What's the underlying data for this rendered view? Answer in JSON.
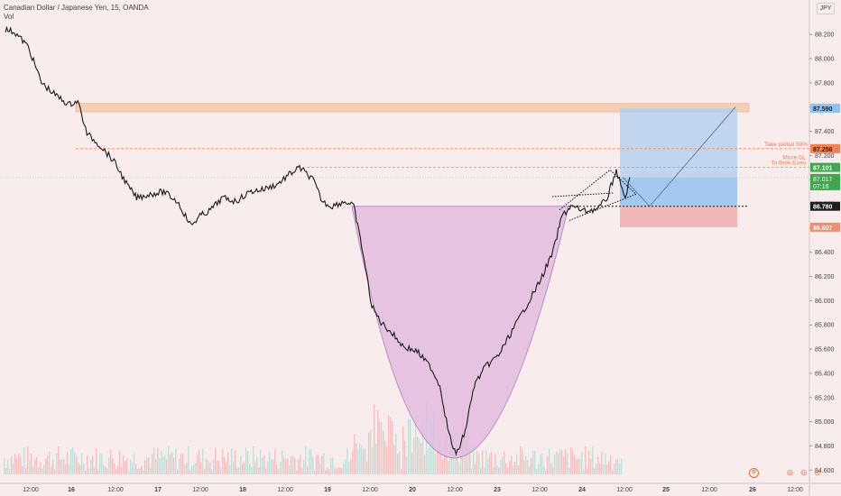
{
  "header": {
    "symbol_line": "Canadian Dollar / Japanese Yen, 15, OANDA",
    "volume_label": "Vol",
    "currency_badge": "JPY"
  },
  "icons": {
    "settings": "gear-icon",
    "timezone": "clock-icon"
  },
  "colors": {
    "background": "#f8ecec",
    "candle": "#1a1a1a",
    "volume_up": "#b7dcd6",
    "volume_down": "#f0b8b8",
    "resistance_zone": "#f5c9a6",
    "take_profit_zone": "#a9cdf0",
    "stop_loss_zone": "#f0a7a7",
    "cup_fill": "#e2bde0",
    "cup_line": "#b07bc0",
    "partial_line": "#f08c5a",
    "move_sl_line": "#7fbf8f",
    "axis_text": "#444444",
    "tp_label": "#8ec3f0",
    "partial_label": "#f0825a",
    "current_label": "#3ea84e",
    "entry_label": "#1f1f1f",
    "stop_label": "#ec8f73"
  },
  "chart_data": {
    "type": "candlestick",
    "title": "Canadian Dollar / Japanese Yen, 15, OANDA",
    "ylim": [
      84.55,
      88.35
    ],
    "y_ticks": [
      "88.200",
      "88.000",
      "87.800",
      "87.600",
      "87.400",
      "87.200",
      "87.000",
      "86.800",
      "86.600",
      "86.400",
      "86.200",
      "86.000",
      "85.800",
      "85.600",
      "85.400",
      "85.200",
      "85.000",
      "84.800",
      "84.600"
    ],
    "x_ticks": [
      "12:00",
      "16",
      "12:00",
      "17",
      "12:00",
      "18",
      "12:00",
      "19",
      "12:00",
      "20",
      "12:00",
      "23",
      "12:00",
      "24",
      "12:00",
      "25",
      "12:00",
      "26",
      "12:00"
    ],
    "price_path": [
      [
        0,
        88.24
      ],
      [
        10,
        88.22
      ],
      [
        25,
        88.1
      ],
      [
        40,
        87.8
      ],
      [
        55,
        87.7
      ],
      [
        70,
        87.62
      ],
      [
        80,
        87.65
      ],
      [
        90,
        87.38
      ],
      [
        105,
        87.28
      ],
      [
        120,
        87.15
      ],
      [
        135,
        86.95
      ],
      [
        145,
        86.85
      ],
      [
        160,
        86.88
      ],
      [
        175,
        86.9
      ],
      [
        190,
        86.82
      ],
      [
        205,
        86.62
      ],
      [
        215,
        86.7
      ],
      [
        225,
        86.74
      ],
      [
        240,
        86.85
      ],
      [
        255,
        86.82
      ],
      [
        270,
        86.9
      ],
      [
        285,
        86.92
      ],
      [
        300,
        86.96
      ],
      [
        315,
        87.05
      ],
      [
        325,
        87.1
      ],
      [
        340,
        87.0
      ],
      [
        350,
        86.82
      ],
      [
        360,
        86.78
      ],
      [
        375,
        86.82
      ],
      [
        385,
        86.78
      ],
      [
        395,
        86.4
      ],
      [
        405,
        85.95
      ],
      [
        415,
        85.82
      ],
      [
        425,
        85.75
      ],
      [
        440,
        85.62
      ],
      [
        455,
        85.58
      ],
      [
        470,
        85.45
      ],
      [
        480,
        85.3
      ],
      [
        490,
        84.9
      ],
      [
        498,
        84.72
      ],
      [
        508,
        84.92
      ],
      [
        518,
        85.3
      ],
      [
        530,
        85.45
      ],
      [
        545,
        85.55
      ],
      [
        560,
        85.75
      ],
      [
        575,
        85.95
      ],
      [
        590,
        86.15
      ],
      [
        605,
        86.4
      ],
      [
        615,
        86.7
      ],
      [
        625,
        86.78
      ],
      [
        640,
        86.74
      ],
      [
        655,
        86.76
      ],
      [
        665,
        86.85
      ],
      [
        675,
        87.08
      ],
      [
        680,
        86.95
      ],
      [
        685,
        86.85
      ],
      [
        690,
        87.02
      ]
    ],
    "levels": {
      "take_profit": 87.59,
      "partial": 87.256,
      "move_sl": 87.101,
      "current": 87.017,
      "entry": 86.78,
      "stop": 86.607
    },
    "current_countdown": "07:16",
    "annotations": [
      "Take partial 50%",
      "Move SL",
      "To Brek Even"
    ],
    "price_labels": [
      "87.590",
      "87.256",
      "87.101",
      "87.017",
      "86.780",
      "86.607"
    ]
  }
}
